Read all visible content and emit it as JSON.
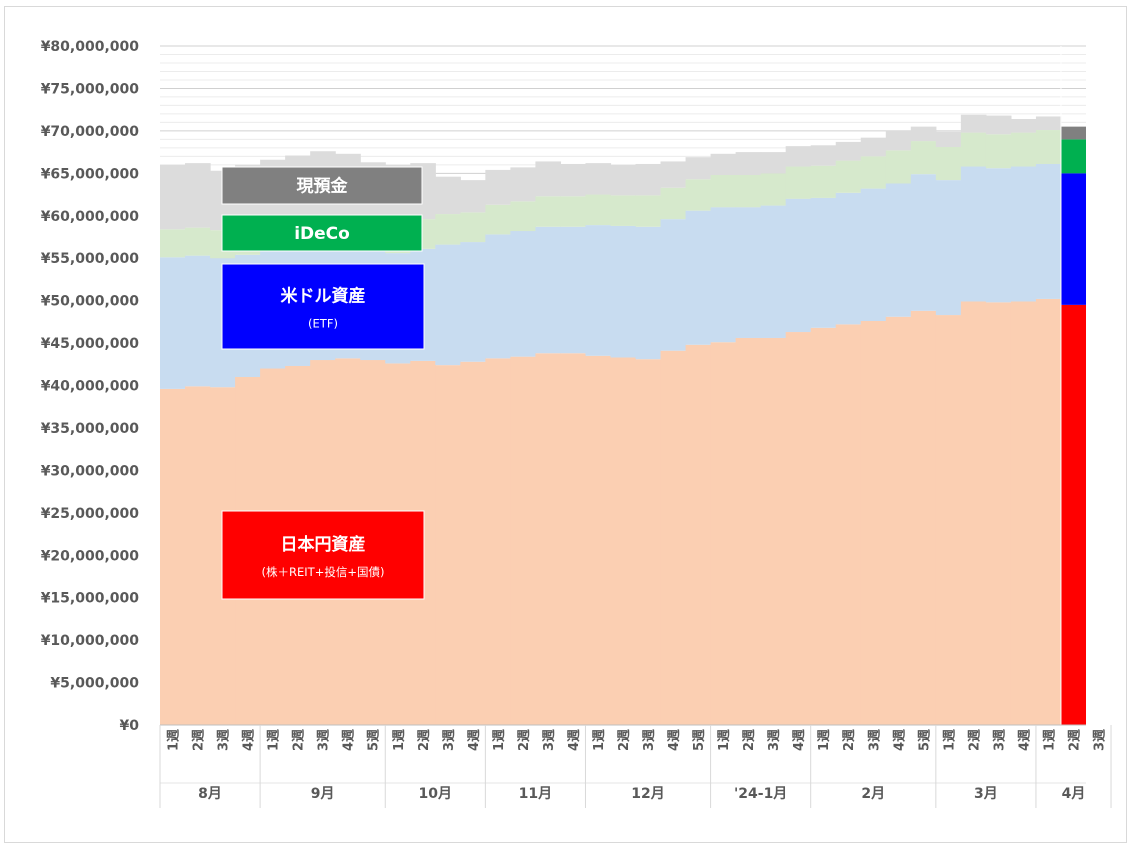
{
  "chart_data": {
    "type": "area",
    "stacked": true,
    "currency_prefix": "¥",
    "ylim": [
      0,
      80000000
    ],
    "yticks": [
      "¥0",
      "¥5,000,000",
      "¥10,000,000",
      "¥15,000,000",
      "¥20,000,000",
      "¥25,000,000",
      "¥30,000,000",
      "¥35,000,000",
      "¥40,000,000",
      "¥45,000,000",
      "¥50,000,000",
      "¥55,000,000",
      "¥60,000,000",
      "¥65,000,000",
      "¥70,000,000",
      "¥75,000,000",
      "¥80,000,000"
    ],
    "ytick_values": [
      0,
      5000000,
      10000000,
      15000000,
      20000000,
      25000000,
      30000000,
      35000000,
      40000000,
      45000000,
      50000000,
      55000000,
      60000000,
      65000000,
      70000000,
      75000000,
      80000000
    ],
    "gridlines": true,
    "week_suffix": "週",
    "months": [
      {
        "label": "8月",
        "weeks": 4
      },
      {
        "label": "9月",
        "weeks": 5
      },
      {
        "label": "10月",
        "weeks": 4
      },
      {
        "label": "11月",
        "weeks": 4
      },
      {
        "label": "12月",
        "weeks": 5
      },
      {
        "label": "'24-1月",
        "weeks": 4
      },
      {
        "label": "2月",
        "weeks": 5
      },
      {
        "label": "3月",
        "weeks": 4
      },
      {
        "label": "4月",
        "weeks": 3
      }
    ],
    "series": [
      {
        "key": "jpy",
        "color": "#fbcfb2",
        "highlight": "#ff0000",
        "values": [
          39600000,
          39900000,
          39800000,
          41000000,
          42000000,
          42300000,
          43000000,
          43200000,
          43000000,
          42600000,
          42900000,
          42400000,
          42800000,
          43200000,
          43400000,
          43800000,
          43800000,
          43500000,
          43300000,
          43100000,
          44100000,
          44800000,
          45100000,
          45600000,
          45600000,
          46300000,
          46800000,
          47200000,
          47600000,
          48100000,
          48800000,
          48300000,
          49900000,
          49800000,
          49900000,
          50200000,
          49500000
        ]
      },
      {
        "key": "usd",
        "color": "#c8dcf0",
        "highlight": "#0000ff",
        "values": [
          15500000,
          15400000,
          15200000,
          14400000,
          13900000,
          13800000,
          13300000,
          13000000,
          13400000,
          13000000,
          13200000,
          14200000,
          14100000,
          14600000,
          14800000,
          14900000,
          14900000,
          15400000,
          15500000,
          15600000,
          15500000,
          15800000,
          15900000,
          15400000,
          15600000,
          15700000,
          15300000,
          15500000,
          15600000,
          15700000,
          16100000,
          15900000,
          15900000,
          15800000,
          15900000,
          15900000,
          15500000
        ]
      },
      {
        "key": "ideco",
        "color": "#d6e9cc",
        "highlight": "#00b050",
        "values": [
          3300000,
          3300000,
          3300000,
          3300000,
          3300000,
          3300000,
          3300000,
          3300000,
          3300000,
          3500000,
          3500000,
          3600000,
          3500000,
          3500000,
          3500000,
          3600000,
          3600000,
          3600000,
          3600000,
          3700000,
          3700000,
          3700000,
          3800000,
          3800000,
          3800000,
          3800000,
          3800000,
          3800000,
          3800000,
          3900000,
          3900000,
          3900000,
          4000000,
          4000000,
          4000000,
          4000000,
          4000000
        ]
      },
      {
        "key": "cash",
        "color": "#dcdcdc",
        "highlight": "#808080",
        "values": [
          7600000,
          7600000,
          7000000,
          7300000,
          7400000,
          7700000,
          8000000,
          7800000,
          6600000,
          6900000,
          6600000,
          4400000,
          3800000,
          4100000,
          4000000,
          4100000,
          3800000,
          3700000,
          3600000,
          3700000,
          3100000,
          2600000,
          2500000,
          2700000,
          2500000,
          2400000,
          2400000,
          2200000,
          2200000,
          2300000,
          1700000,
          1800000,
          2100000,
          2200000,
          1600000,
          1600000,
          1500000
        ]
      }
    ],
    "legend": {
      "placement": "left-inside",
      "items": [
        {
          "key": "cash",
          "label": "現預金",
          "sub": ""
        },
        {
          "key": "ideco",
          "label": "iDeCo",
          "sub": ""
        },
        {
          "key": "usd",
          "label": "米ドル資産",
          "sub": "(ETF)"
        },
        {
          "key": "jpy",
          "label": "日本円資産",
          "sub": "(株＋REIT+投信+国債)"
        }
      ]
    }
  }
}
